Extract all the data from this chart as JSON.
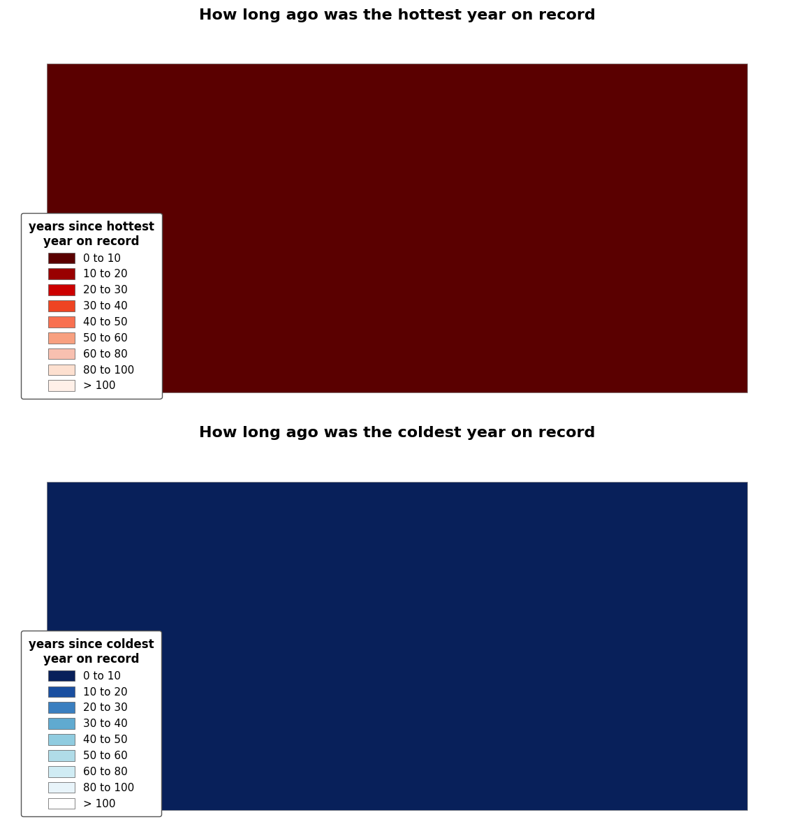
{
  "title_top": "How long ago was the hottest year on record",
  "title_bottom": "How long ago was the coldest year on record",
  "title_fontsize": 16,
  "title_fontweight": "bold",
  "hot_colors": [
    "#5a0000",
    "#990000",
    "#cc0000",
    "#ee4422",
    "#f87050",
    "#f8a080",
    "#f8c0b0",
    "#fde0d0",
    "#fff0e8"
  ],
  "cold_colors": [
    "#08205a",
    "#1a4fa0",
    "#3a7fc0",
    "#60aad0",
    "#90cce0",
    "#b0dce8",
    "#d0ecf4",
    "#e8f4fa",
    "#ffffff"
  ],
  "hot_labels": [
    "0 to 10",
    "10 to 20",
    "20 to 30",
    "30 to 40",
    "40 to 50",
    "50 to 60",
    "60 to 80",
    "80 to 100",
    "> 100"
  ],
  "cold_labels": [
    "0 to 10",
    "10 to 20",
    "20 to 30",
    "30 to 40",
    "40 to 50",
    "50 to 60",
    "60 to 80",
    "80 to 100",
    "> 100"
  ],
  "legend_title_hot": "years since hottest\nyear on record",
  "legend_title_cold": "years since coldest\nyear on record",
  "legend_fontsize": 11,
  "legend_title_fontsize": 12,
  "background_color": "#ffffff",
  "map_background": "#ffffff",
  "border_color": "#888888",
  "figure_width": 11.37,
  "figure_height": 12.0
}
